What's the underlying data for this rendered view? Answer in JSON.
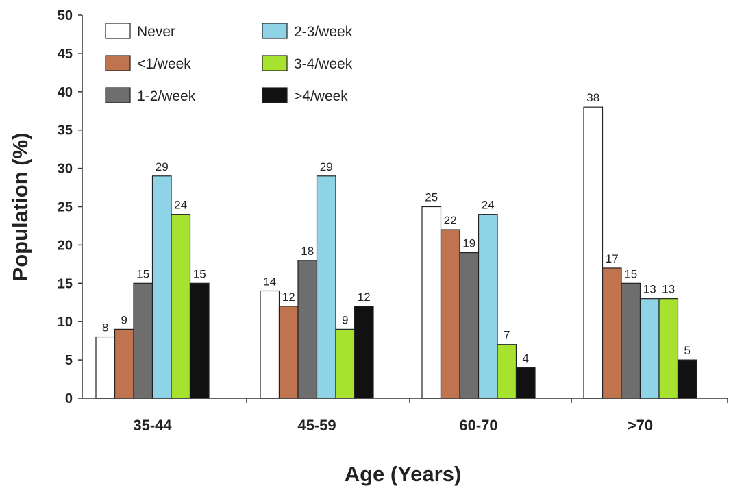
{
  "chart_data": {
    "type": "bar",
    "title": "",
    "xlabel": "Age (Years)",
    "ylabel": "Population (%)",
    "ylim": [
      0,
      50
    ],
    "yticks": [
      0,
      5,
      10,
      15,
      20,
      25,
      30,
      35,
      40,
      45,
      50
    ],
    "categories": [
      "35-44",
      "45-59",
      "60-70",
      ">70"
    ],
    "legend_position": "top-left",
    "series": [
      {
        "name": "Never",
        "color": "#ffffff",
        "values": [
          8,
          14,
          25,
          38
        ]
      },
      {
        "name": "<1/week",
        "color": "#c0734f",
        "values": [
          9,
          12,
          22,
          17
        ]
      },
      {
        "name": "1-2/week",
        "color": "#6e6e6e",
        "values": [
          15,
          18,
          19,
          15
        ]
      },
      {
        "name": "2-3/week",
        "color": "#8fd3e6",
        "values": [
          29,
          29,
          24,
          13
        ]
      },
      {
        "name": "3-4/week",
        "color": "#a6e22e",
        "values": [
          24,
          9,
          7,
          13
        ]
      },
      {
        "name": ">4/week",
        "color": "#111111",
        "values": [
          15,
          12,
          4,
          5
        ]
      }
    ]
  }
}
